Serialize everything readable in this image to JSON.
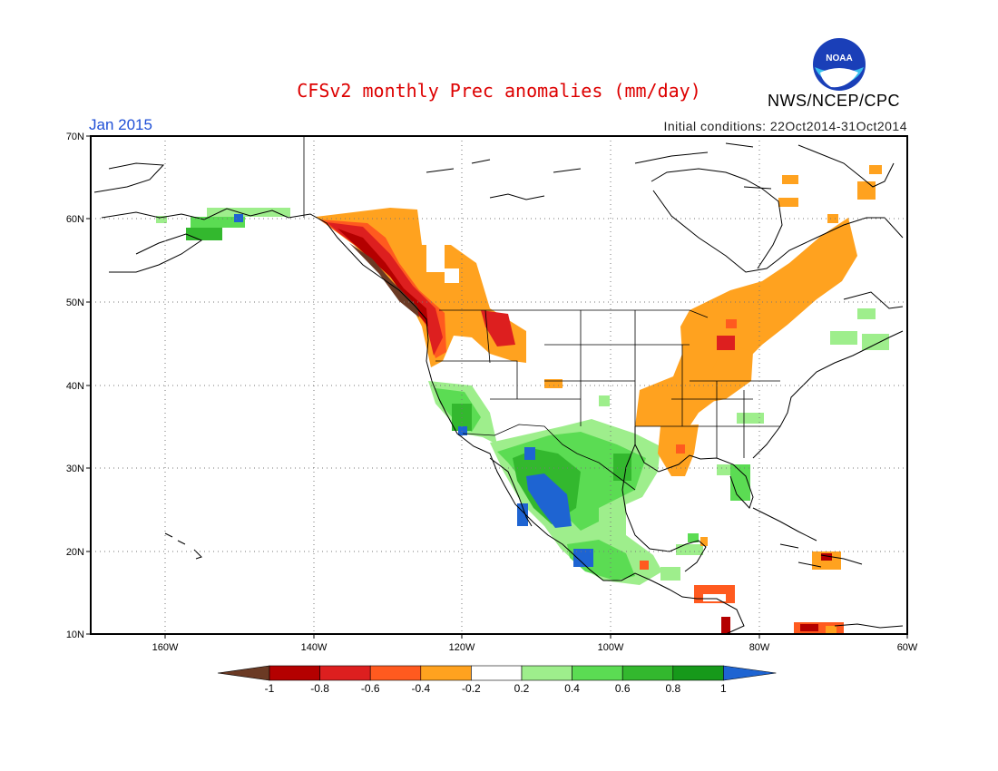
{
  "header": {
    "title": "CFSv2 monthly Prec anomalies (mm/day)",
    "title_color": "#dd0000",
    "agency": "NWS/NCEP/CPC",
    "logo_text": "NOAA",
    "month": "Jan 2015",
    "month_color": "#1f4fd6",
    "initial_conditions": "Initial conditions: 22Oct2014-31Oct2014"
  },
  "map": {
    "lat_labels": [
      "70N",
      "60N",
      "50N",
      "40N",
      "30N",
      "20N",
      "10N"
    ],
    "lon_labels": [
      "160W",
      "140W",
      "120W",
      "100W",
      "80W",
      "60W"
    ],
    "grid": "dotted"
  },
  "legend": {
    "tick_labels": [
      "-1",
      "-0.8",
      "-0.6",
      "-0.4",
      "-0.2",
      "0.2",
      "0.4",
      "0.6",
      "0.8",
      "1"
    ],
    "colors": [
      "#6b3a24",
      "#b40000",
      "#dd1f1f",
      "#ff5a1f",
      "#ffa21f",
      "#ffffff",
      "#9eee8c",
      "#5bdc53",
      "#33b82e",
      "#16991a",
      "#1e64d2"
    ]
  }
}
